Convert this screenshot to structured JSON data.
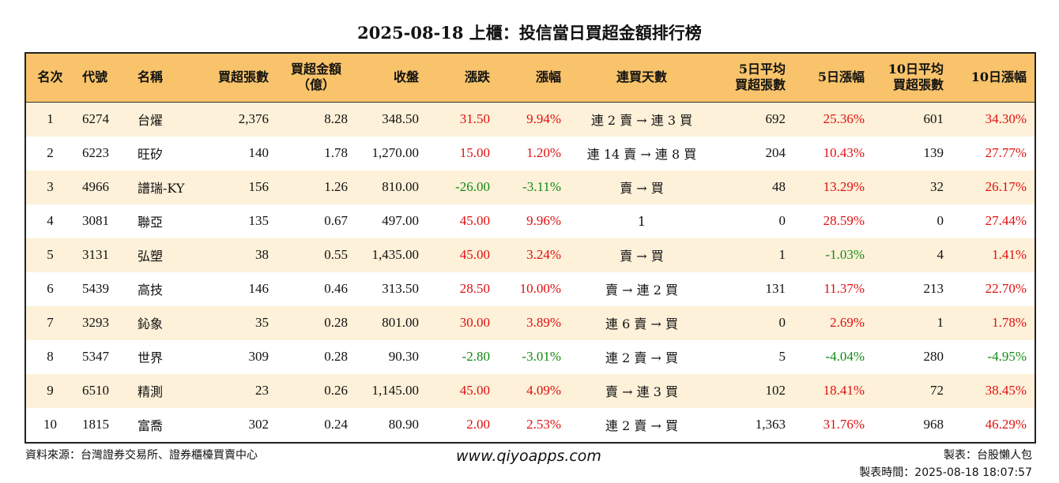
{
  "title": "2025-08-18 上櫃：投信當日買超金額排行榜",
  "columns": {
    "rank": "名次",
    "code": "代號",
    "name": "名稱",
    "net_shares": "買超張數",
    "net_amount_1": "買超金額",
    "net_amount_2": "（億）",
    "close": "收盤",
    "change": "漲跌",
    "change_pct": "漲幅",
    "streak": "連買天數",
    "avg5_1": "5日平均",
    "avg5_2": "買超張數",
    "pct5": "5日漲幅",
    "avg10_1": "10日平均",
    "avg10_2": "買超張數",
    "pct10": "10日漲幅"
  },
  "rows": [
    {
      "rank": "1",
      "code": "6274",
      "name": "台燿",
      "net_shares": "2,376",
      "net_amount": "8.28",
      "close": "348.50",
      "change": "31.50",
      "change_pct": "9.94%",
      "streak": "連 2 賣 → 連 3 買",
      "avg5": "692",
      "pct5": "25.36%",
      "avg10": "601",
      "pct10": "34.30%",
      "change_color": "red",
      "pct5_color": "red",
      "pct10_color": "red"
    },
    {
      "rank": "2",
      "code": "6223",
      "name": "旺矽",
      "net_shares": "140",
      "net_amount": "1.78",
      "close": "1,270.00",
      "change": "15.00",
      "change_pct": "1.20%",
      "streak": "連 14 賣 → 連 8 買",
      "avg5": "204",
      "pct5": "10.43%",
      "avg10": "139",
      "pct10": "27.77%",
      "change_color": "red",
      "pct5_color": "red",
      "pct10_color": "red"
    },
    {
      "rank": "3",
      "code": "4966",
      "name": "譜瑞-KY",
      "net_shares": "156",
      "net_amount": "1.26",
      "close": "810.00",
      "change": "-26.00",
      "change_pct": "-3.11%",
      "streak": "賣 → 買",
      "avg5": "48",
      "pct5": "13.29%",
      "avg10": "32",
      "pct10": "26.17%",
      "change_color": "green",
      "pct5_color": "red",
      "pct10_color": "red"
    },
    {
      "rank": "4",
      "code": "3081",
      "name": "聯亞",
      "net_shares": "135",
      "net_amount": "0.67",
      "close": "497.00",
      "change": "45.00",
      "change_pct": "9.96%",
      "streak": "1",
      "avg5": "0",
      "pct5": "28.59%",
      "avg10": "0",
      "pct10": "27.44%",
      "change_color": "red",
      "pct5_color": "red",
      "pct10_color": "red"
    },
    {
      "rank": "5",
      "code": "3131",
      "name": "弘塑",
      "net_shares": "38",
      "net_amount": "0.55",
      "close": "1,435.00",
      "change": "45.00",
      "change_pct": "3.24%",
      "streak": "賣 → 買",
      "avg5": "1",
      "pct5": "-1.03%",
      "avg10": "4",
      "pct10": "1.41%",
      "change_color": "red",
      "pct5_color": "green",
      "pct10_color": "red"
    },
    {
      "rank": "6",
      "code": "5439",
      "name": "高技",
      "net_shares": "146",
      "net_amount": "0.46",
      "close": "313.50",
      "change": "28.50",
      "change_pct": "10.00%",
      "streak": "賣 → 連 2 買",
      "avg5": "131",
      "pct5": "11.37%",
      "avg10": "213",
      "pct10": "22.70%",
      "change_color": "red",
      "pct5_color": "red",
      "pct10_color": "red"
    },
    {
      "rank": "7",
      "code": "3293",
      "name": "鈊象",
      "net_shares": "35",
      "net_amount": "0.28",
      "close": "801.00",
      "change": "30.00",
      "change_pct": "3.89%",
      "streak": "連 6 賣 → 買",
      "avg5": "0",
      "pct5": "2.69%",
      "avg10": "1",
      "pct10": "1.78%",
      "change_color": "red",
      "pct5_color": "red",
      "pct10_color": "red"
    },
    {
      "rank": "8",
      "code": "5347",
      "name": "世界",
      "net_shares": "309",
      "net_amount": "0.28",
      "close": "90.30",
      "change": "-2.80",
      "change_pct": "-3.01%",
      "streak": "連 2 賣 → 買",
      "avg5": "5",
      "pct5": "-4.04%",
      "avg10": "280",
      "pct10": "-4.95%",
      "change_color": "green",
      "pct5_color": "green",
      "pct10_color": "green"
    },
    {
      "rank": "9",
      "code": "6510",
      "name": "精測",
      "net_shares": "23",
      "net_amount": "0.26",
      "close": "1,145.00",
      "change": "45.00",
      "change_pct": "4.09%",
      "streak": "賣 → 連 3 買",
      "avg5": "102",
      "pct5": "18.41%",
      "avg10": "72",
      "pct10": "38.45%",
      "change_color": "red",
      "pct5_color": "red",
      "pct10_color": "red"
    },
    {
      "rank": "10",
      "code": "1815",
      "name": "富喬",
      "net_shares": "302",
      "net_amount": "0.24",
      "close": "80.90",
      "change": "2.00",
      "change_pct": "2.53%",
      "streak": "連 2 賣 → 買",
      "avg5": "1,363",
      "pct5": "31.76%",
      "avg10": "968",
      "pct10": "46.29%",
      "change_color": "red",
      "pct5_color": "red",
      "pct10_color": "red"
    }
  ],
  "footer": {
    "source": "資料來源：台灣證券交易所、證券櫃檯買賣中心",
    "website": "www.qiyoapps.com",
    "maker": "製表：台股懶人包",
    "made_time_label": "製表時間：",
    "made_time": "2025-08-18 18:07:57"
  },
  "colors": {
    "header_bg": "#f8c36a",
    "stripe_bg": "#fdf1d9",
    "up": "#e01010",
    "down": "#138a13"
  }
}
